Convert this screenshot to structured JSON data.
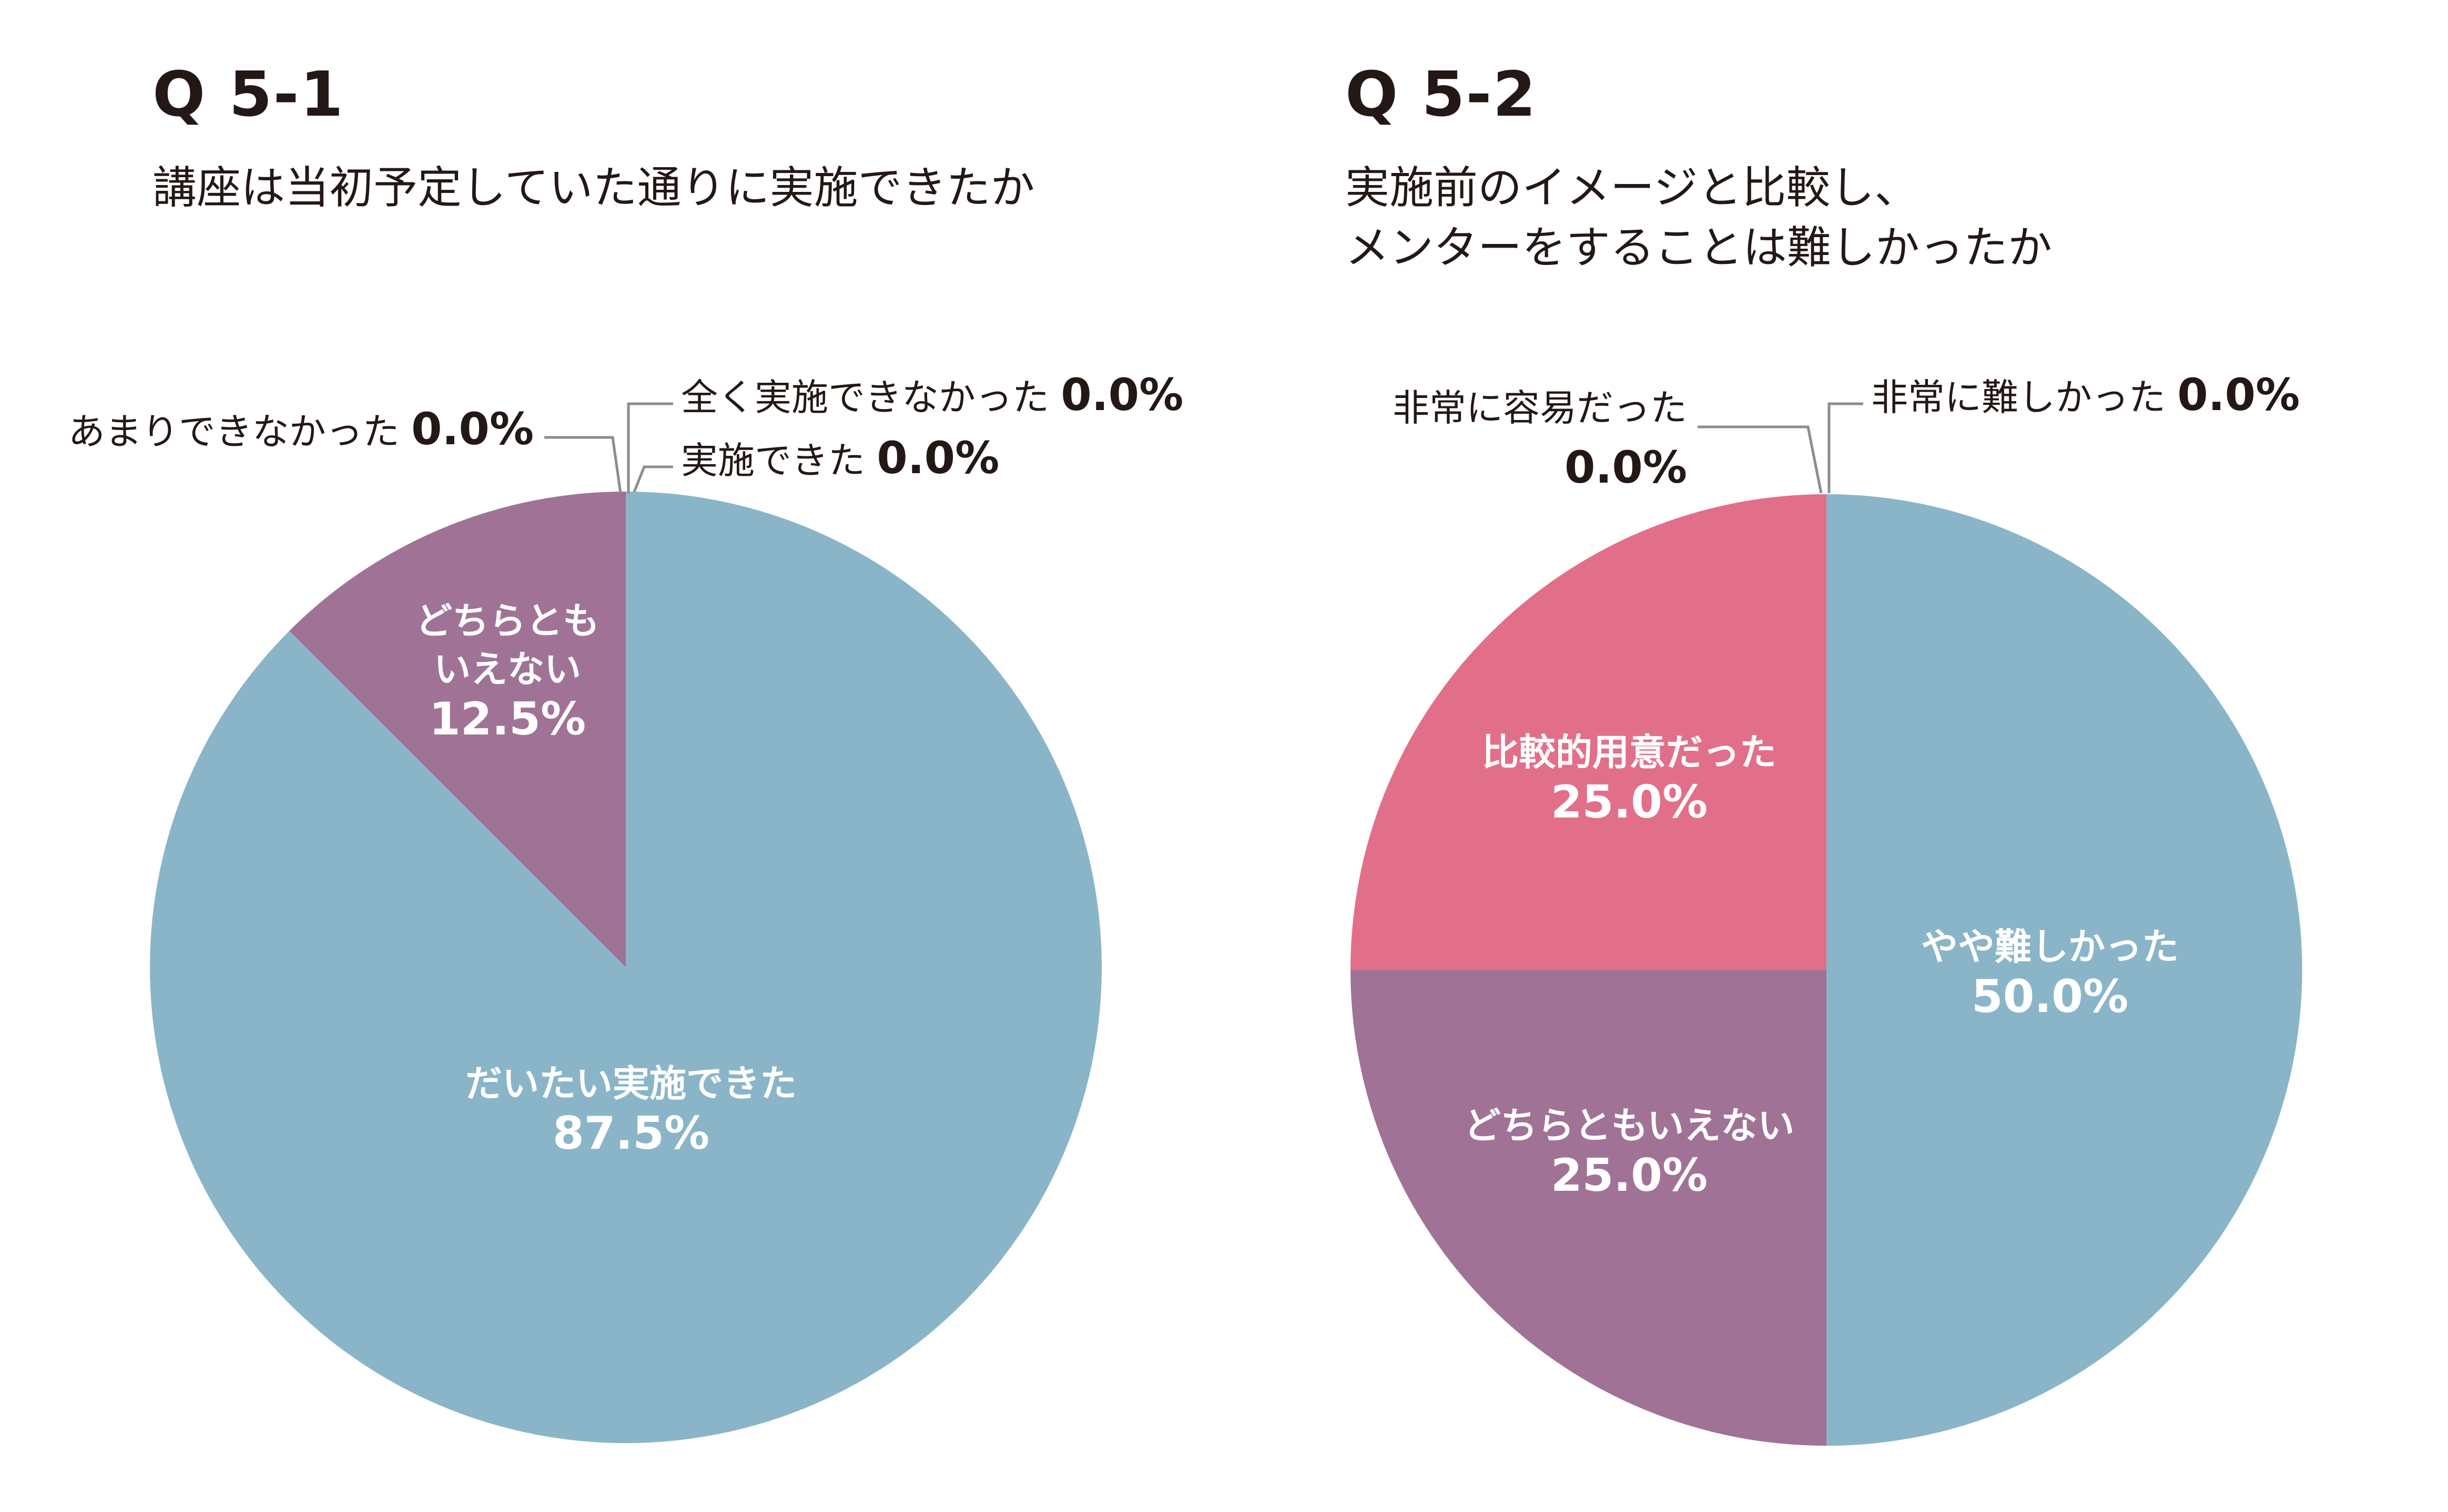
{
  "chart_data": [
    {
      "type": "pie",
      "title": "Q 5-1",
      "subtitle": "講座は当初予定していた通りに実施できたか",
      "slices": [
        {
          "label": "実施できた",
          "value": 0.0,
          "display": "0.0%",
          "color": "#8ab5c8"
        },
        {
          "label": "だいたい実施できた",
          "value": 87.5,
          "display": "87.5%",
          "color": "#8ab5c8"
        },
        {
          "label": "どちらとも\nいえない",
          "value": 12.5,
          "display": "12.5%",
          "color": "#a07396"
        },
        {
          "label": "あまりできなかった",
          "value": 0.0,
          "display": "0.0%",
          "color": "#a07396"
        },
        {
          "label": "全く実施できなかった",
          "value": 0.0,
          "display": "0.0%",
          "color": "#a07396"
        }
      ]
    },
    {
      "type": "pie",
      "title": "Q 5-2",
      "subtitle": "実施前のイメージと比較し、\nメンターをすることは難しかったか",
      "slices": [
        {
          "label": "非常に難しかった",
          "value": 0.0,
          "display": "0.0%",
          "color": "#8ab5c8"
        },
        {
          "label": "やや難しかった",
          "value": 50.0,
          "display": "50.0%",
          "color": "#8ab5c8"
        },
        {
          "label": "どちらともいえない",
          "value": 25.0,
          "display": "25.0%",
          "color": "#a07396"
        },
        {
          "label": "比較的用意だった",
          "value": 25.0,
          "display": "25.0%",
          "color": "#e26f89"
        },
        {
          "label": "非常に容易だった",
          "value": 0.0,
          "display": "0.0%",
          "color": "#e26f89"
        }
      ]
    }
  ]
}
